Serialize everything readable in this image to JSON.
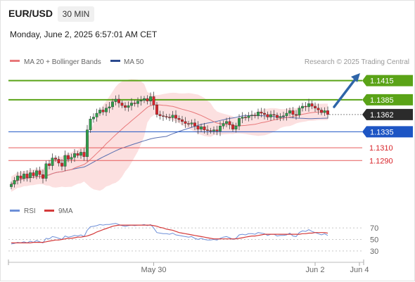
{
  "header": {
    "symbol": "EUR/USD",
    "timeframe": "30 MIN",
    "datetime": "Monday, June 2, 2025 6:57:01 AM CET",
    "credit": "Research © 2025 Trading Central"
  },
  "legend": {
    "ma20_label": "MA 20 + Bollinger Bands",
    "ma50_label": "MA 50",
    "rsi_label": "RSI",
    "rsi_ma_label": "9MA"
  },
  "colors": {
    "up_candle": "#2e9e4a",
    "down_candle": "#d8242a",
    "resistance": "#5aa317",
    "current": "#2b2b2b",
    "pivot": "#1d55c4",
    "support": "#e65a5a",
    "ma20": "#e8787a",
    "ma50": "#5a6fb0",
    "bollinger_fill": "#fbd8d8",
    "rsi": "#6d8fd8",
    "rsi_ma": "#d43a3a",
    "arrow": "#2f65a8"
  },
  "levels": [
    {
      "value": 1.1415,
      "label": "1.1415",
      "kind": "resistance"
    },
    {
      "value": 1.1385,
      "label": "1.1385",
      "kind": "resistance"
    },
    {
      "value": 1.1362,
      "label": "1.1362",
      "kind": "current"
    },
    {
      "value": 1.1335,
      "label": "1.1335",
      "kind": "pivot"
    },
    {
      "value": 1.131,
      "label": "1.1310",
      "kind": "support"
    },
    {
      "value": 1.129,
      "label": "1.1290",
      "kind": "support"
    }
  ],
  "chart_data": {
    "type": "candlestick",
    "symbol": "EUR/USD",
    "interval": "30 MIN",
    "ylim": [
      1.1232,
      1.143
    ],
    "x_tick_labels": [
      {
        "label": "May 30",
        "index": 45
      },
      {
        "label": "Jun 2",
        "index": 96
      },
      {
        "label": "Jun 4",
        "index": 110
      }
    ],
    "closes": [
      1.1253,
      1.1259,
      1.1266,
      1.1262,
      1.1269,
      1.1263,
      1.1271,
      1.1266,
      1.1274,
      1.1268,
      1.1262,
      1.1285,
      1.1282,
      1.1294,
      1.1292,
      1.1286,
      1.1281,
      1.1298,
      1.1292,
      1.1295,
      1.1301,
      1.1298,
      1.1303,
      1.1296,
      1.1338,
      1.1355,
      1.1358,
      1.1364,
      1.1369,
      1.1366,
      1.1372,
      1.1374,
      1.1382,
      1.1386,
      1.138,
      1.1376,
      1.1373,
      1.1376,
      1.138,
      1.1379,
      1.1383,
      1.1384,
      1.1387,
      1.1383,
      1.139,
      1.1377,
      1.1362,
      1.136,
      1.1359,
      1.1358,
      1.1357,
      1.1361,
      1.1356,
      1.1354,
      1.1351,
      1.1348,
      1.1347,
      1.1349,
      1.1344,
      1.1339,
      1.1343,
      1.1338,
      1.1337,
      1.1336,
      1.1338,
      1.1336,
      1.1344,
      1.1348,
      1.1351,
      1.1346,
      1.1339,
      1.1344,
      1.1356,
      1.1358,
      1.1357,
      1.136,
      1.1361,
      1.136,
      1.1366,
      1.1364,
      1.1362,
      1.1358,
      1.1362,
      1.1361,
      1.1357,
      1.1359,
      1.136,
      1.1364,
      1.1368,
      1.1362,
      1.1361,
      1.1372,
      1.1375,
      1.1374,
      1.1379,
      1.1375,
      1.1372,
      1.1369,
      1.1365,
      1.1368,
      1.1362
    ],
    "rsi": {
      "ylim": [
        20,
        80
      ],
      "levels": [
        70,
        50,
        30
      ],
      "level_labels": [
        "70",
        "50",
        "30"
      ],
      "rsi_values": [
        42,
        43,
        45,
        44,
        46,
        44,
        47,
        45,
        48,
        46,
        44,
        52,
        51,
        55,
        54,
        52,
        50,
        56,
        54,
        55,
        57,
        56,
        58,
        55,
        66,
        72,
        73,
        74,
        76,
        75,
        76,
        76,
        77,
        78,
        76,
        74,
        73,
        74,
        75,
        74,
        75,
        75,
        76,
        74,
        76,
        70,
        62,
        61,
        60,
        60,
        59,
        61,
        58,
        57,
        56,
        55,
        54,
        55,
        52,
        50,
        52,
        50,
        49,
        49,
        50,
        49,
        52,
        54,
        55,
        53,
        50,
        52,
        58,
        59,
        58,
        60,
        60,
        59,
        62,
        61,
        60,
        57,
        59,
        59,
        56,
        57,
        57,
        58,
        61,
        56,
        55,
        62,
        65,
        64,
        67,
        64,
        62,
        60,
        58,
        60,
        57
      ],
      "ma_values": [
        44,
        44,
        44,
        44,
        44,
        44,
        44,
        45,
        45,
        45,
        45,
        46,
        47,
        48,
        49,
        49,
        50,
        51,
        52,
        52,
        53,
        54,
        54,
        55,
        56,
        58,
        60,
        63,
        65,
        67,
        69,
        71,
        73,
        74,
        75,
        75,
        75,
        75,
        75,
        75,
        75,
        75,
        75,
        75,
        75,
        74,
        73,
        71,
        70,
        68,
        67,
        66,
        64,
        62,
        61,
        60,
        59,
        58,
        57,
        56,
        55,
        54,
        53,
        52,
        51,
        51,
        51,
        51,
        51,
        51,
        51,
        51,
        52,
        53,
        54,
        55,
        56,
        56,
        57,
        58,
        59,
        59,
        59,
        59,
        59,
        59,
        59,
        59,
        59,
        59,
        59,
        59,
        60,
        60,
        61,
        61,
        62,
        62,
        62,
        62,
        61
      ]
    }
  }
}
